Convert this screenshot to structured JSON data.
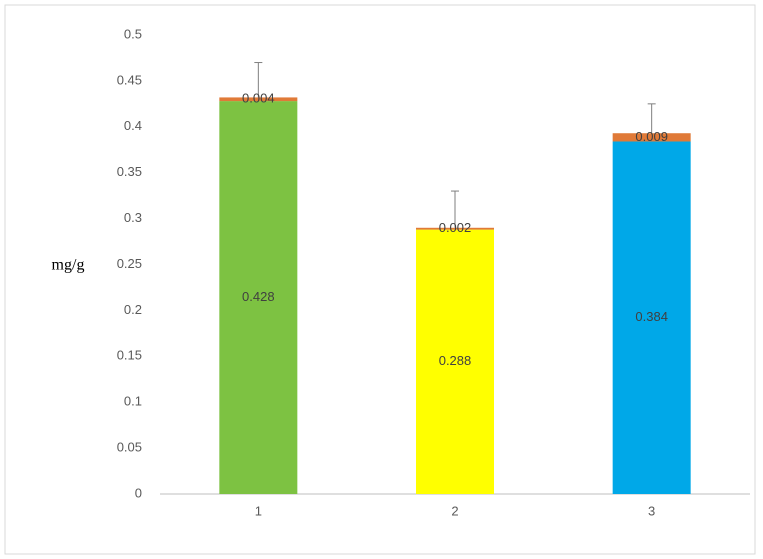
{
  "chart_data": {
    "type": "stacked-bar",
    "y_label": "mg/g",
    "categories": [
      "1",
      "2",
      "3"
    ],
    "series": [
      {
        "colors": [
          "#7dc242",
          "#ffff00",
          "#00a8e8"
        ],
        "values": [
          0.428,
          0.288,
          0.384
        ]
      },
      {
        "color": "#e07a38",
        "values": [
          0.004,
          0.002,
          0.009
        ],
        "value_labels": [
          "0.004",
          "0.002",
          "0.009"
        ],
        "errors": [
          0.038,
          0.04,
          0.032
        ]
      }
    ],
    "ylim": [
      0,
      0.5
    ],
    "yticks": [
      0,
      0.05,
      0.1,
      0.15,
      0.2,
      0.25,
      0.3,
      0.35,
      0.4,
      0.45,
      0.5
    ],
    "grid": false
  }
}
